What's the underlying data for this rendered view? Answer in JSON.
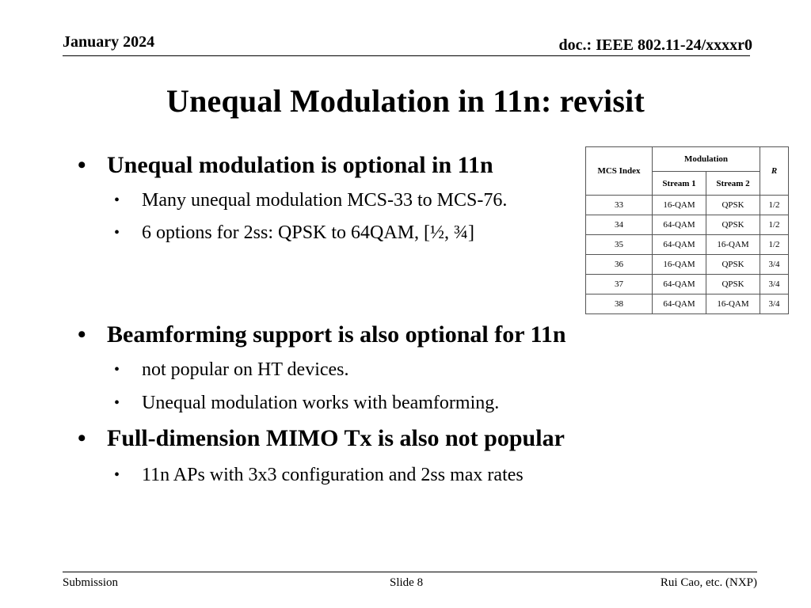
{
  "header": {
    "date": "January 2024",
    "doc": "doc.: IEEE 802.11-24/xxxxr0"
  },
  "title": "Unequal Modulation in 11n: revisit",
  "bullets": [
    {
      "text": "Unequal modulation is optional in 11n",
      "subs": [
        "Many unequal modulation MCS-33 to MCS-76.",
        "6 options for 2ss: QPSK to 64QAM, [½, ¾]"
      ]
    },
    {
      "text": "Beamforming support is also optional for 11n",
      "subs": [
        "not popular on HT devices.",
        "Unequal modulation works with beamforming."
      ]
    },
    {
      "text": "Full-dimension MIMO Tx is also not popular",
      "subs": [
        "11n APs with 3x3 configuration and 2ss max rates"
      ]
    }
  ],
  "bullet_symbol": "•",
  "table": {
    "headers": {
      "mcs_index": "MCS Index",
      "modulation": "Modulation",
      "stream1": "Stream 1",
      "stream2": "Stream 2",
      "r": "R"
    },
    "rows": [
      [
        "33",
        "16-QAM",
        "QPSK",
        "1/2"
      ],
      [
        "34",
        "64-QAM",
        "QPSK",
        "1/2"
      ],
      [
        "35",
        "64-QAM",
        "16-QAM",
        "1/2"
      ],
      [
        "36",
        "16-QAM",
        "QPSK",
        "3/4"
      ],
      [
        "37",
        "64-QAM",
        "QPSK",
        "3/4"
      ],
      [
        "38",
        "64-QAM",
        "16-QAM",
        "3/4"
      ]
    ]
  },
  "footer": {
    "left": "Submission",
    "center": "Slide 8",
    "right": "Rui Cao, etc. (NXP)"
  }
}
